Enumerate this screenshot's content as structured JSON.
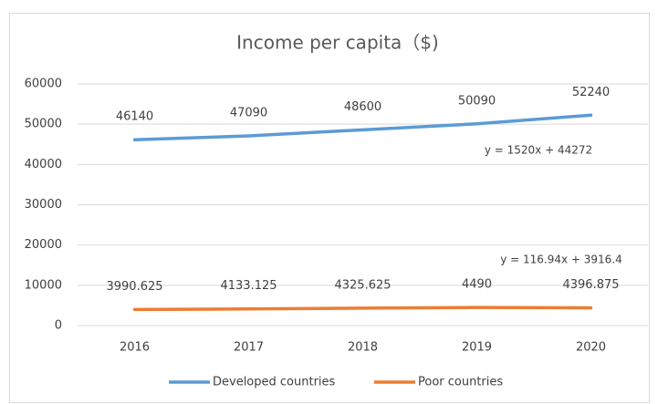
{
  "chart_data": {
    "type": "line",
    "title": "Income per capita（$)",
    "categories": [
      "2016",
      "2017",
      "2018",
      "2019",
      "2020"
    ],
    "series": [
      {
        "name": "Developed countries",
        "color": "#5b9bd5",
        "values": [
          46140,
          47090,
          48600,
          50090,
          52240
        ]
      },
      {
        "name": "Poor countries",
        "color": "#ed7d31",
        "values": [
          3990.625,
          4133.125,
          4325.625,
          4490,
          4396.875
        ]
      }
    ],
    "annotations": [
      "y = 1520x + 44272",
      "y = 116.94x + 3916.4"
    ],
    "ylim": [
      0,
      60000
    ],
    "yticks": [
      0,
      10000,
      20000,
      30000,
      40000,
      50000,
      60000
    ],
    "grid": true,
    "legend": "bottom"
  }
}
